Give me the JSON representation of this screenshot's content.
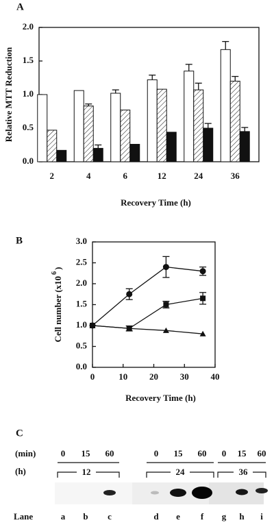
{
  "chart_data": [
    {
      "type": "bar",
      "label": "A",
      "ylabel": "Relative MTT Reduction",
      "xlabel": "Recovery Time (h)",
      "categories": [
        "2",
        "4",
        "6",
        "12",
        "24",
        "36"
      ],
      "series": [
        {
          "color": "#ffffff",
          "pattern": "none",
          "values": [
            1.0,
            1.06,
            1.02,
            1.22,
            1.35,
            1.67
          ],
          "errors": [
            null,
            null,
            0.05,
            0.07,
            0.1,
            0.12
          ]
        },
        {
          "color": "#ffffff",
          "pattern": "hatch",
          "values": [
            0.47,
            0.83,
            0.77,
            1.08,
            1.07,
            1.2
          ],
          "errors": [
            null,
            0.03,
            null,
            null,
            0.1,
            0.07
          ]
        },
        {
          "color": "#111111",
          "pattern": "none",
          "values": [
            0.17,
            0.2,
            0.26,
            0.44,
            0.5,
            0.45
          ],
          "errors": [
            null,
            0.05,
            null,
            null,
            0.07,
            0.06
          ]
        }
      ],
      "ylim": [
        0,
        2.0
      ],
      "yticks": [
        {
          "value": 0,
          "label": "0.0"
        },
        {
          "value": 0.5,
          "label": "0.5"
        },
        {
          "value": 1.0,
          "label": "1.0"
        },
        {
          "value": 1.5,
          "label": "1.5"
        },
        {
          "value": 2.0,
          "label": "2.0"
        }
      ]
    },
    {
      "type": "line",
      "label": "B",
      "ylabel_parts": [
        "Cell number (x10",
        "6",
        ")"
      ],
      "xlabel": "Recovery Time (h)",
      "x": [
        0,
        12,
        24,
        36
      ],
      "series": [
        {
          "marker": "circle",
          "color": "#111111",
          "values": [
            1.0,
            1.75,
            2.4,
            2.3
          ],
          "errors": [
            null,
            0.13,
            0.25,
            0.1
          ]
        },
        {
          "marker": "square",
          "color": "#111111",
          "values": [
            1.0,
            0.93,
            1.5,
            1.65
          ],
          "errors": [
            null,
            0.06,
            0.08,
            0.14
          ]
        },
        {
          "marker": "triangle",
          "color": "#111111",
          "values": [
            1.0,
            0.93,
            0.88,
            0.8
          ],
          "errors": [
            null,
            null,
            null,
            null
          ]
        }
      ],
      "xlim": [
        0,
        40
      ],
      "xticks": [
        0,
        10,
        20,
        30,
        40
      ],
      "ylim": [
        0,
        3.0
      ],
      "yticks": [
        {
          "value": 0,
          "label": "0.0"
        },
        {
          "value": 0.5,
          "label": "0.5"
        },
        {
          "value": 1.0,
          "label": "1.0"
        },
        {
          "value": 1.5,
          "label": "1.5"
        },
        {
          "value": 2.0,
          "label": "2.0"
        },
        {
          "value": 2.5,
          "label": "2.5"
        },
        {
          "value": 3.0,
          "label": "3.0"
        }
      ]
    }
  ],
  "blot": {
    "label": "C",
    "min_label": "(min)",
    "h_label": "(h)",
    "lane_label": "Lane",
    "minutes": [
      "0",
      "15",
      "60",
      "0",
      "15",
      "60",
      "0",
      "15",
      "60"
    ],
    "hours": [
      "12",
      "24",
      "36"
    ],
    "lanes": [
      "a",
      "b",
      "c",
      "d",
      "e",
      "f",
      "g",
      "h",
      "i"
    ]
  }
}
